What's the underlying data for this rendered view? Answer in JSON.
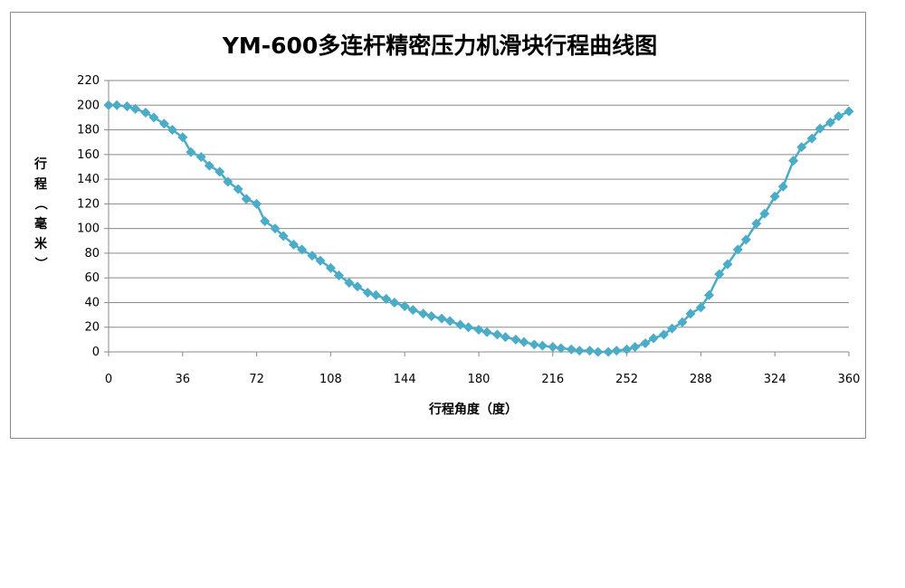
{
  "chart_data": {
    "type": "line",
    "title": "YM-600多连杆精密压力机滑块行程曲线图",
    "xlabel": "行程角度（度）",
    "ylabel": "行程（毫米）",
    "xlim": [
      0,
      360
    ],
    "ylim": [
      0,
      220
    ],
    "x_ticks": [
      0,
      36,
      72,
      108,
      144,
      180,
      216,
      252,
      288,
      324,
      360
    ],
    "y_ticks": [
      0,
      20,
      40,
      60,
      80,
      100,
      120,
      140,
      160,
      180,
      200,
      220
    ],
    "grid": "horizontal",
    "legend": "none",
    "series_color": "#4aacc6",
    "marker": "diamond",
    "series": [
      {
        "x": [
          0,
          4,
          9,
          13,
          18,
          22,
          27,
          31,
          36,
          40,
          45,
          49,
          54,
          58,
          63,
          67,
          72,
          76,
          81,
          85,
          90,
          94,
          99,
          103,
          108,
          112,
          117,
          121,
          126,
          130,
          135,
          139,
          144,
          148,
          153,
          157,
          162,
          166,
          171,
          175,
          180,
          184,
          189,
          193,
          198,
          202,
          207,
          211,
          216,
          220,
          225,
          229,
          234,
          238,
          243,
          247,
          252,
          256,
          261,
          265,
          270,
          274,
          279,
          283,
          288,
          292,
          297,
          301,
          306,
          310,
          315,
          319,
          324,
          328,
          333,
          337,
          342,
          346,
          351,
          355,
          360
        ],
        "y": [
          200,
          200,
          199,
          197,
          194,
          190,
          185,
          180,
          174,
          162,
          158,
          151,
          146,
          138,
          132,
          124,
          120,
          106,
          100,
          94,
          87,
          83,
          78,
          74,
          68,
          62,
          56,
          53,
          48,
          46,
          43,
          40,
          37,
          34,
          31,
          29,
          27,
          25,
          22,
          20,
          18,
          16,
          14,
          12,
          10,
          8,
          6,
          5,
          4,
          3,
          2,
          1,
          1,
          0,
          0,
          1,
          2,
          4,
          7,
          11,
          14,
          19,
          24,
          31,
          36,
          46,
          63,
          71,
          83,
          91,
          104,
          112,
          126,
          134,
          155,
          166,
          173,
          181,
          186,
          191,
          195
        ]
      }
    ]
  }
}
